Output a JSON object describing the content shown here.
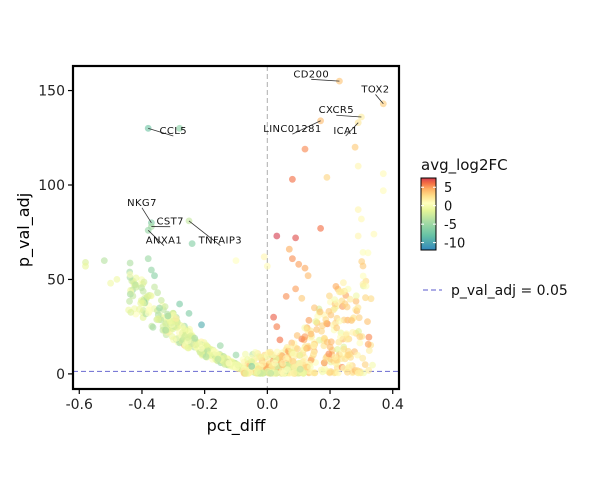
{
  "chart_data": {
    "type": "scatter",
    "xlabel": "pct_diff",
    "ylabel": "p_val_adj",
    "xlim": [
      -0.62,
      0.42
    ],
    "ylim": [
      -8,
      163
    ],
    "x_ticks": [
      -0.6,
      -0.4,
      -0.2,
      0.0,
      0.2,
      0.4
    ],
    "x_tick_labels": [
      "-0.6",
      "-0.4",
      "-0.2",
      "0.0",
      "0.2",
      "0.4"
    ],
    "y_ticks": [
      0,
      50,
      100,
      150
    ],
    "y_tick_labels": [
      "0",
      "50",
      "100",
      "150"
    ],
    "grid": false,
    "color_scale": "Spectral (reversed)",
    "colorbar": {
      "title": "avg_log2FC",
      "range": [
        -12,
        7.5
      ],
      "ticks": [
        5,
        0,
        -5,
        -10
      ],
      "tick_labels": [
        "5",
        "0",
        "-5",
        "-10"
      ]
    },
    "reference_lines": [
      {
        "orientation": "horizontal",
        "y": 1.3,
        "style": "dashed",
        "color": "#7b7bd6",
        "legend": "p_val_adj = 0.05"
      },
      {
        "orientation": "vertical",
        "x": 0.0,
        "style": "dashed",
        "color": "#bbbbbb"
      }
    ],
    "legend_entry": "p_val_adj = 0.05",
    "legend_position": "right",
    "labeled_genes": [
      {
        "gene": "CD200",
        "x": 0.23,
        "y": 155,
        "fc": 3.2
      },
      {
        "gene": "TOX2",
        "x": 0.37,
        "y": 143,
        "fc": 2.9
      },
      {
        "gene": "CXCR5",
        "x": 0.3,
        "y": 136,
        "fc": 1.5
      },
      {
        "gene": "ICA1",
        "x": 0.29,
        "y": 133,
        "fc": 1.8
      },
      {
        "gene": "LINC01281",
        "x": 0.17,
        "y": 134,
        "fc": 3.5
      },
      {
        "gene": "CCL5",
        "x": -0.38,
        "y": 130,
        "fc": -7.5
      },
      {
        "gene": "NKG7",
        "x": -0.37,
        "y": 80,
        "fc": -6.5
      },
      {
        "gene": "CST7",
        "x": -0.37,
        "y": 78,
        "fc": -4.2
      },
      {
        "gene": "ANXA1",
        "x": -0.38,
        "y": 76,
        "fc": -5.2
      },
      {
        "gene": "TNFAIP3",
        "x": -0.25,
        "y": 81,
        "fc": -3.0
      }
    ],
    "points": [
      {
        "x": 0.23,
        "y": 155,
        "fc": 3.2
      },
      {
        "x": 0.37,
        "y": 143,
        "fc": 2.9
      },
      {
        "x": 0.3,
        "y": 136,
        "fc": 1.5
      },
      {
        "x": 0.29,
        "y": 133,
        "fc": 1.8
      },
      {
        "x": 0.17,
        "y": 134,
        "fc": 3.5
      },
      {
        "x": -0.38,
        "y": 130,
        "fc": -7.5
      },
      {
        "x": -0.28,
        "y": 130,
        "fc": -6.0
      },
      {
        "x": -0.37,
        "y": 80,
        "fc": -6.5
      },
      {
        "x": -0.37,
        "y": 78,
        "fc": -4.2
      },
      {
        "x": -0.38,
        "y": 76,
        "fc": -5.2
      },
      {
        "x": -0.25,
        "y": 81,
        "fc": -3.0
      },
      {
        "x": -0.24,
        "y": 69,
        "fc": -6.2
      },
      {
        "x": 0.12,
        "y": 119,
        "fc": 5.2
      },
      {
        "x": 0.28,
        "y": 120,
        "fc": 3.0
      },
      {
        "x": 0.08,
        "y": 103,
        "fc": 6.0
      },
      {
        "x": 0.19,
        "y": 104,
        "fc": 2.6
      },
      {
        "x": 0.29,
        "y": 110,
        "fc": 1.0
      },
      {
        "x": 0.37,
        "y": 106,
        "fc": 0.8
      },
      {
        "x": 0.37,
        "y": 97,
        "fc": 0.7
      },
      {
        "x": 0.03,
        "y": 73,
        "fc": 9.0
      },
      {
        "x": 0.09,
        "y": 72,
        "fc": 7.0
      },
      {
        "x": 0.17,
        "y": 77,
        "fc": 6.0
      },
      {
        "x": 0.29,
        "y": 87,
        "fc": 1.0
      },
      {
        "x": 0.3,
        "y": 82,
        "fc": 0.9
      },
      {
        "x": 0.34,
        "y": 74,
        "fc": 0.8
      },
      {
        "x": 0.29,
        "y": 73,
        "fc": 1.0
      },
      {
        "x": -0.58,
        "y": 59,
        "fc": -2.0
      },
      {
        "x": -0.52,
        "y": 60,
        "fc": -3.5
      },
      {
        "x": -0.58,
        "y": 57,
        "fc": -1.2
      },
      {
        "x": -0.48,
        "y": 50,
        "fc": -0.8
      },
      {
        "x": -0.5,
        "y": 48,
        "fc": -0.7
      },
      {
        "x": -0.38,
        "y": 61,
        "fc": -4.8
      },
      {
        "x": -0.37,
        "y": 55,
        "fc": -5.5
      },
      {
        "x": -0.36,
        "y": 52,
        "fc": -6.0
      },
      {
        "x": -0.36,
        "y": 46,
        "fc": -3.0
      },
      {
        "x": -0.35,
        "y": 43,
        "fc": -3.2
      },
      {
        "x": -0.28,
        "y": 37,
        "fc": -6.8
      },
      {
        "x": -0.25,
        "y": 32,
        "fc": -6.5
      },
      {
        "x": -0.21,
        "y": 26,
        "fc": -9.5
      },
      {
        "x": -0.15,
        "y": 15,
        "fc": -5.0
      },
      {
        "x": -0.1,
        "y": 10,
        "fc": -5.2
      },
      {
        "x": -0.05,
        "y": 4,
        "fc": -6.5
      },
      {
        "x": 0.02,
        "y": 30,
        "fc": 6.5
      },
      {
        "x": 0.03,
        "y": 25,
        "fc": 5.5
      },
      {
        "x": 0.04,
        "y": 18,
        "fc": 6.0
      },
      {
        "x": 0.08,
        "y": 61,
        "fc": 5.0
      },
      {
        "x": 0.1,
        "y": 58,
        "fc": 4.5
      },
      {
        "x": 0.07,
        "y": 66,
        "fc": 4.0
      },
      {
        "x": 0.12,
        "y": 56,
        "fc": 4.2
      },
      {
        "x": 0.13,
        "y": 52,
        "fc": 3.5
      },
      {
        "x": 0.09,
        "y": 45,
        "fc": 4.5
      },
      {
        "x": 0.11,
        "y": 40,
        "fc": 3.0
      },
      {
        "x": 0.15,
        "y": 35,
        "fc": 3.2
      },
      {
        "x": 0.06,
        "y": 41,
        "fc": 5.0
      },
      {
        "x": -0.1,
        "y": 60,
        "fc": 0.5
      },
      {
        "x": -0.01,
        "y": 62,
        "fc": 1.0
      },
      {
        "x": 0.0,
        "y": 57,
        "fc": 0.8
      }
    ],
    "clusters": [
      {
        "n": 380,
        "x_min": -0.45,
        "x_max": -0.01,
        "shape": "left_v",
        "fc_center": -1.2,
        "fc_spread": 2.6,
        "seed": 11
      },
      {
        "n": 320,
        "x_min": 0.0,
        "x_max": 0.34,
        "shape": "right_fan",
        "fc_center": 2.0,
        "fc_spread": 2.4,
        "seed": 23
      },
      {
        "n": 140,
        "x_min": -0.08,
        "x_max": 0.12,
        "shape": "base",
        "fc_center": 0.3,
        "fc_spread": 2.0,
        "seed": 37
      }
    ]
  }
}
